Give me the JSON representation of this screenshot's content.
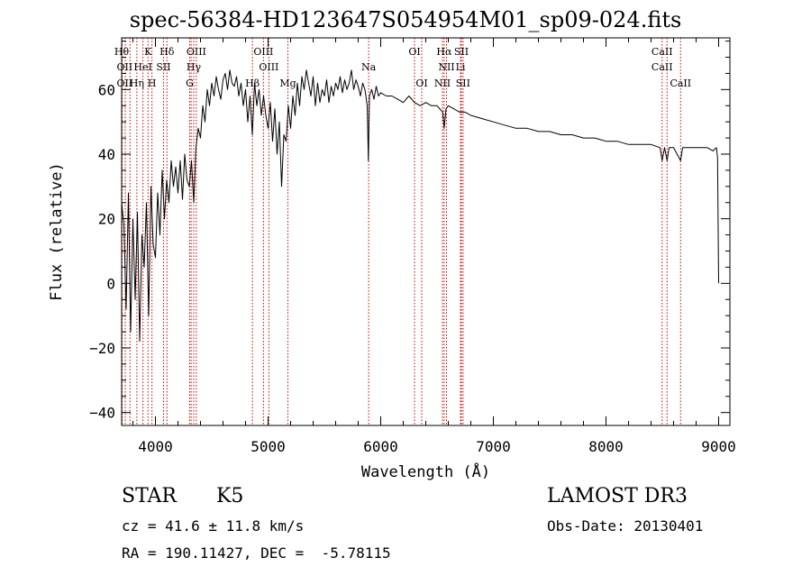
{
  "header": {
    "title": "spec-56384-HD123647S054954M01_sp09-024.fits"
  },
  "info": {
    "object_class": "STAR",
    "subclass": "K5",
    "survey": "LAMOST DR3",
    "cz": "cz = 41.6 ± 11.8 km/s",
    "obs_date": "Obs-Date: 20130401",
    "radec": "RA = 190.11427, DEC =  -5.78115"
  },
  "chart_data": {
    "type": "line",
    "title": "spec-56384-HD123647S054954M01_sp09-024.fits",
    "xlabel": "Wavelength (Å)",
    "ylabel": "Flux (relative)",
    "xlim": [
      3700,
      9100
    ],
    "ylim": [
      -44,
      76
    ],
    "xticks": [
      4000,
      5000,
      6000,
      7000,
      8000,
      9000
    ],
    "yticks": [
      -40,
      -20,
      0,
      20,
      40,
      60
    ],
    "x_minor_step": 200,
    "y_minor_step": 5,
    "line_color": "#000000",
    "marker_color": "#cc0000",
    "series": [
      {
        "name": "flux",
        "x": [
          3700,
          3720,
          3740,
          3760,
          3780,
          3800,
          3820,
          3840,
          3860,
          3880,
          3900,
          3920,
          3940,
          3960,
          3980,
          4000,
          4020,
          4040,
          4060,
          4080,
          4100,
          4120,
          4140,
          4160,
          4180,
          4200,
          4220,
          4240,
          4260,
          4280,
          4300,
          4320,
          4340,
          4360,
          4380,
          4400,
          4420,
          4440,
          4460,
          4480,
          4500,
          4520,
          4540,
          4560,
          4580,
          4600,
          4620,
          4640,
          4660,
          4680,
          4700,
          4720,
          4740,
          4760,
          4780,
          4800,
          4820,
          4840,
          4860,
          4880,
          4900,
          4920,
          4940,
          4960,
          4980,
          5000,
          5020,
          5040,
          5060,
          5080,
          5100,
          5120,
          5140,
          5160,
          5180,
          5200,
          5220,
          5240,
          5260,
          5280,
          5300,
          5320,
          5340,
          5360,
          5380,
          5400,
          5420,
          5440,
          5460,
          5480,
          5500,
          5520,
          5540,
          5560,
          5580,
          5600,
          5620,
          5640,
          5660,
          5680,
          5700,
          5720,
          5740,
          5760,
          5780,
          5800,
          5820,
          5840,
          5860,
          5880,
          5890,
          5900,
          5920,
          5940,
          5960,
          5980,
          6000,
          6050,
          6100,
          6150,
          6200,
          6250,
          6300,
          6350,
          6400,
          6450,
          6500,
          6550,
          6563,
          6580,
          6600,
          6650,
          6700,
          6750,
          6800,
          6900,
          7000,
          7100,
          7200,
          7300,
          7400,
          7500,
          7600,
          7700,
          7800,
          7900,
          8000,
          8100,
          8200,
          8300,
          8400,
          8480,
          8498,
          8520,
          8542,
          8560,
          8600,
          8662,
          8680,
          8700,
          8750,
          8800,
          8850,
          8900,
          8950,
          8980,
          8990,
          9000
        ],
        "values": [
          25,
          18,
          -8,
          28,
          -15,
          20,
          -5,
          22,
          -18,
          15,
          5,
          25,
          -10,
          30,
          12,
          8,
          28,
          15,
          35,
          20,
          32,
          25,
          38,
          30,
          36,
          28,
          38,
          26,
          40,
          32,
          30,
          38,
          25,
          42,
          48,
          45,
          55,
          50,
          60,
          55,
          62,
          58,
          64,
          60,
          57,
          63,
          65,
          60,
          66,
          62,
          61,
          64,
          58,
          62,
          55,
          60,
          50,
          58,
          46,
          62,
          55,
          60,
          52,
          58,
          52,
          48,
          56,
          44,
          54,
          40,
          50,
          30,
          46,
          44,
          55,
          48,
          58,
          52,
          62,
          55,
          64,
          60,
          66,
          62,
          58,
          64,
          55,
          62,
          56,
          60,
          58,
          63,
          56,
          61,
          58,
          62,
          60,
          64,
          59,
          63,
          60,
          62,
          66,
          60,
          63,
          61,
          58,
          62,
          60,
          55,
          38,
          58,
          60,
          57,
          61,
          58,
          59,
          58,
          58,
          57,
          56,
          58,
          56,
          55,
          56,
          55,
          55,
          53,
          48,
          54,
          55,
          54,
          53,
          53,
          52,
          51,
          50,
          49,
          48,
          48,
          47,
          47,
          46,
          46,
          45,
          45,
          44,
          44,
          43,
          43,
          43,
          42,
          38,
          42,
          38,
          42,
          42,
          38,
          42,
          42,
          42,
          42,
          42,
          42,
          41,
          42,
          39,
          0
        ]
      }
    ],
    "line_markers": [
      {
        "x": 3704,
        "upper": "Hθ",
        "lower": "OII"
      },
      {
        "x": 3732,
        "upper": "",
        "lower": "OII"
      },
      {
        "x": 3774,
        "upper": "",
        "lower": "Hη"
      },
      {
        "x": 3835,
        "upper": "",
        "lower": "Hη"
      },
      {
        "x": 3889,
        "upper": "",
        "lower": "HeI"
      },
      {
        "x": 3934,
        "upper": "K",
        "lower": ""
      },
      {
        "x": 3969,
        "upper": "",
        "lower": "H"
      },
      {
        "x": 4072,
        "upper": "",
        "lower": "SII"
      },
      {
        "x": 4102,
        "upper": "Hδ",
        "lower": ""
      },
      {
        "x": 4304,
        "upper": "",
        "lower": "G"
      },
      {
        "x": 4317,
        "upper": "OIII",
        "lower": ""
      },
      {
        "x": 4340,
        "upper": "Hγ",
        "lower": ""
      },
      {
        "x": 4363,
        "upper": "",
        "lower": ""
      },
      {
        "x": 4861,
        "upper": "",
        "lower": "Hβ"
      },
      {
        "x": 4959,
        "upper": "",
        "lower": "OIII"
      },
      {
        "x": 5007,
        "upper": "OIII",
        "lower": ""
      },
      {
        "x": 5176,
        "upper": "",
        "lower": "Mg"
      },
      {
        "x": 5893,
        "upper": "",
        "lower": "Na"
      },
      {
        "x": 6300,
        "upper": "OI",
        "lower": ""
      },
      {
        "x": 6364,
        "upper": "",
        "lower": "OI"
      },
      {
        "x": 6548,
        "upper": "",
        "lower": "NII"
      },
      {
        "x": 6563,
        "upper": "Hα",
        "lower": ""
      },
      {
        "x": 6584,
        "upper": "",
        "lower": "NII"
      },
      {
        "x": 6708,
        "upper": "",
        "lower": "Li"
      },
      {
        "x": 6716,
        "upper": "SII",
        "lower": ""
      },
      {
        "x": 6731,
        "upper": "",
        "lower": "SII"
      },
      {
        "x": 8498,
        "upper": "CaII",
        "lower": "CaII"
      },
      {
        "x": 8542,
        "upper": "",
        "lower": ""
      },
      {
        "x": 8662,
        "upper": "",
        "lower": "CaII"
      }
    ],
    "line_labels": [
      {
        "text": "Hθ",
        "x": 3700,
        "row": 1
      },
      {
        "text": "K",
        "x": 3934,
        "row": 1
      },
      {
        "text": "Hδ",
        "x": 4102,
        "row": 1
      },
      {
        "text": "OIII",
        "x": 4363,
        "row": 1
      },
      {
        "text": "OIII",
        "x": 4959,
        "row": 1
      },
      {
        "text": "OI",
        "x": 6300,
        "row": 1
      },
      {
        "text": "Hα",
        "x": 6563,
        "row": 1
      },
      {
        "text": "SII",
        "x": 6716,
        "row": 1
      },
      {
        "text": "CaII",
        "x": 8498,
        "row": 1
      },
      {
        "text": "OII",
        "x": 3727,
        "row": 2
      },
      {
        "text": "HeI",
        "x": 3889,
        "row": 2
      },
      {
        "text": "SII",
        "x": 4072,
        "row": 2
      },
      {
        "text": "Hγ",
        "x": 4340,
        "row": 2
      },
      {
        "text": "OIII",
        "x": 5007,
        "row": 2
      },
      {
        "text": "Na",
        "x": 5893,
        "row": 2
      },
      {
        "text": "NII",
        "x": 6584,
        "row": 2
      },
      {
        "text": "Li",
        "x": 6708,
        "row": 2
      },
      {
        "text": "CaII",
        "x": 8498,
        "row": 2
      },
      {
        "text": "OII",
        "x": 3727,
        "row": 3
      },
      {
        "text": "Hη",
        "x": 3835,
        "row": 3
      },
      {
        "text": "H",
        "x": 3969,
        "row": 3
      },
      {
        "text": "G",
        "x": 4304,
        "row": 3
      },
      {
        "text": "Hβ",
        "x": 4861,
        "row": 3
      },
      {
        "text": "Mg",
        "x": 5176,
        "row": 3
      },
      {
        "text": "OI",
        "x": 6364,
        "row": 3
      },
      {
        "text": "NII",
        "x": 6548,
        "row": 3
      },
      {
        "text": "SII",
        "x": 6731,
        "row": 3
      },
      {
        "text": "CaII",
        "x": 8662,
        "row": 3
      }
    ]
  }
}
